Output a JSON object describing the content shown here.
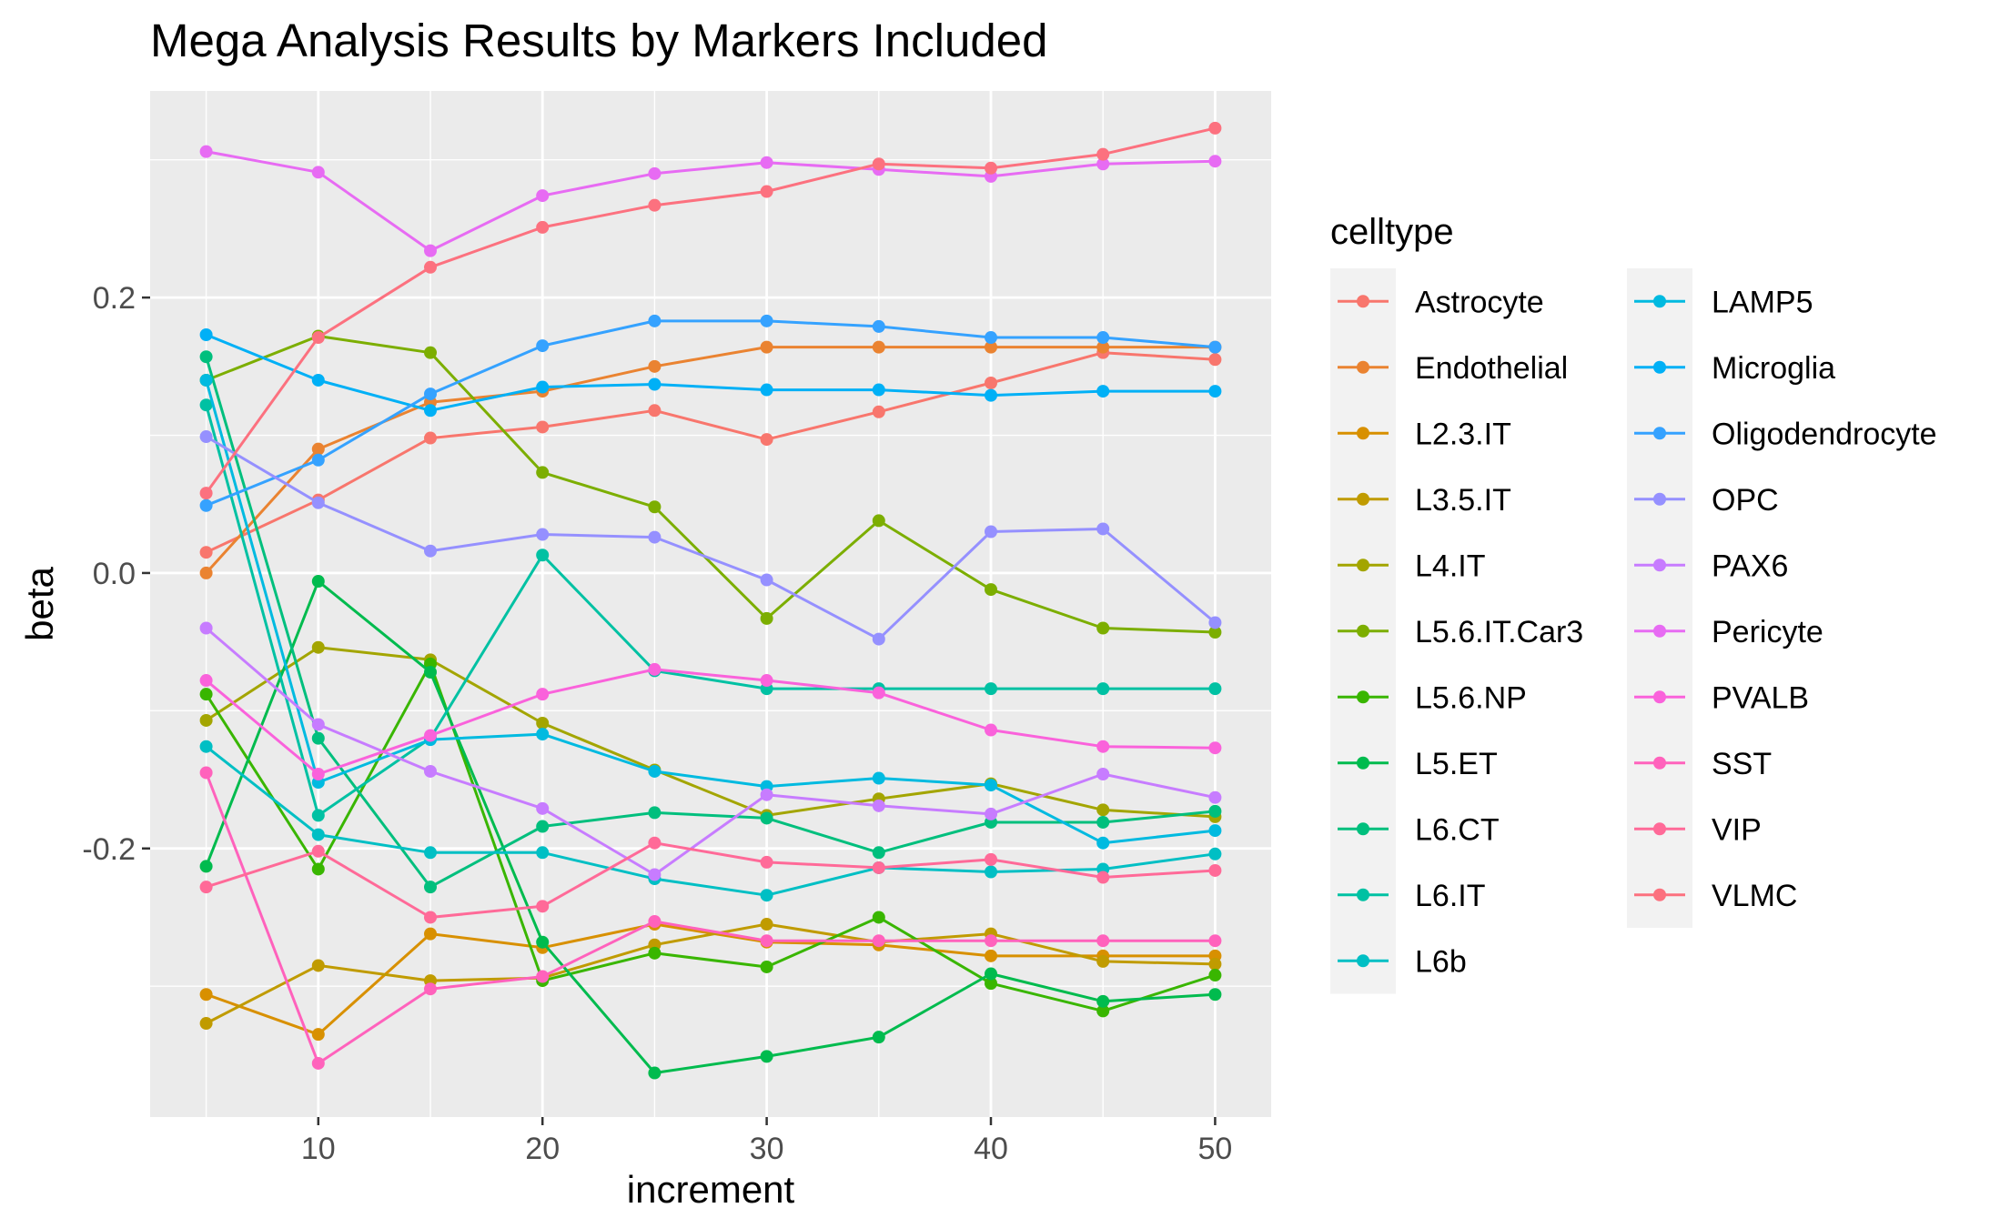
{
  "chart_data": {
    "type": "line",
    "title": "Mega Analysis Results by Markers Included",
    "xlabel": "increment",
    "ylabel": "beta",
    "xlim": [
      2.5,
      52.5
    ],
    "ylim": [
      -0.395,
      0.35
    ],
    "x_ticks": [
      10,
      20,
      30,
      40,
      50
    ],
    "x_tick_labels": [
      "10",
      "20",
      "30",
      "40",
      "50"
    ],
    "y_ticks": [
      -0.2,
      0.0,
      0.2
    ],
    "y_tick_labels": [
      "-0.2",
      "0.0",
      "0.2"
    ],
    "grid": true,
    "legend": {
      "title": "celltype",
      "placement": "right"
    },
    "x": [
      5,
      10,
      15,
      20,
      25,
      30,
      35,
      40,
      45,
      50
    ],
    "series": [
      {
        "name": "Astrocyte",
        "color": "#F8766D",
        "values": [
          0.015,
          0.053,
          0.098,
          0.106,
          0.118,
          0.097,
          0.117,
          0.138,
          0.16,
          0.155
        ]
      },
      {
        "name": "Endothelial",
        "color": "#EA8331",
        "values": [
          0.0,
          0.09,
          0.124,
          0.132,
          0.15,
          0.164,
          0.164,
          0.164,
          0.164,
          0.164
        ]
      },
      {
        "name": "L2.3.IT",
        "color": "#D89000",
        "values": [
          -0.306,
          -0.335,
          -0.262,
          -0.272,
          -0.255,
          -0.268,
          -0.27,
          -0.278,
          -0.278,
          -0.278
        ]
      },
      {
        "name": "L3.5.IT",
        "color": "#C09B00",
        "values": [
          -0.327,
          -0.285,
          -0.296,
          -0.294,
          -0.27,
          -0.255,
          -0.268,
          -0.262,
          -0.282,
          -0.284
        ]
      },
      {
        "name": "L4.IT",
        "color": "#A3A500",
        "values": [
          -0.107,
          -0.054,
          -0.063,
          -0.109,
          -0.143,
          -0.176,
          -0.164,
          -0.153,
          -0.172,
          -0.177
        ]
      },
      {
        "name": "L5.6.IT.Car3",
        "color": "#7CAE00",
        "values": [
          0.14,
          0.172,
          0.16,
          0.073,
          0.048,
          -0.033,
          0.038,
          -0.012,
          -0.04,
          -0.043
        ]
      },
      {
        "name": "L5.6.NP",
        "color": "#39B600",
        "values": [
          -0.088,
          -0.215,
          -0.066,
          -0.296,
          -0.276,
          -0.286,
          -0.25,
          -0.298,
          -0.318,
          -0.292
        ]
      },
      {
        "name": "L5.ET",
        "color": "#00BB4E",
        "values": [
          -0.213,
          -0.006,
          -0.072,
          -0.268,
          -0.363,
          -0.351,
          -0.337,
          -0.291,
          -0.311,
          -0.306
        ]
      },
      {
        "name": "L6.CT",
        "color": "#00BF7D",
        "values": [
          0.157,
          -0.12,
          -0.228,
          -0.184,
          -0.174,
          -0.178,
          -0.203,
          -0.181,
          -0.181,
          -0.173
        ]
      },
      {
        "name": "L6.IT",
        "color": "#00C1A3",
        "values": [
          0.122,
          -0.176,
          -0.12,
          0.013,
          -0.071,
          -0.084,
          -0.084,
          -0.084,
          -0.084,
          -0.084
        ]
      },
      {
        "name": "L6b",
        "color": "#00BFC4",
        "values": [
          -0.126,
          -0.19,
          -0.203,
          -0.203,
          -0.222,
          -0.234,
          -0.214,
          -0.217,
          -0.215,
          -0.204
        ]
      },
      {
        "name": "LAMP5",
        "color": "#00BAE0",
        "values": [
          0.14,
          -0.152,
          -0.121,
          -0.117,
          -0.144,
          -0.155,
          -0.149,
          -0.154,
          -0.196,
          -0.187
        ]
      },
      {
        "name": "Microglia",
        "color": "#00B0F6",
        "values": [
          0.173,
          0.14,
          0.118,
          0.135,
          0.137,
          0.133,
          0.133,
          0.129,
          0.132,
          0.132
        ]
      },
      {
        "name": "Oligodendrocyte",
        "color": "#35A2FF",
        "values": [
          0.049,
          0.082,
          0.13,
          0.165,
          0.183,
          0.183,
          0.179,
          0.171,
          0.171,
          0.164
        ]
      },
      {
        "name": "OPC",
        "color": "#9590FF",
        "values": [
          0.099,
          0.051,
          0.016,
          0.028,
          0.026,
          -0.005,
          -0.048,
          0.03,
          0.032,
          -0.036
        ]
      },
      {
        "name": "PAX6",
        "color": "#C77CFF",
        "values": [
          -0.04,
          -0.11,
          -0.144,
          -0.171,
          -0.219,
          -0.161,
          -0.169,
          -0.175,
          -0.146,
          -0.163
        ]
      },
      {
        "name": "Pericyte",
        "color": "#E76BF3",
        "values": [
          0.306,
          0.291,
          0.234,
          0.274,
          0.29,
          0.298,
          0.293,
          0.288,
          0.297,
          0.299
        ]
      },
      {
        "name": "PVALB",
        "color": "#FA62DB",
        "values": [
          -0.078,
          -0.146,
          -0.118,
          -0.088,
          -0.07,
          -0.078,
          -0.087,
          -0.114,
          -0.126,
          -0.127
        ]
      },
      {
        "name": "SST",
        "color": "#FF62BC",
        "values": [
          -0.145,
          -0.356,
          -0.302,
          -0.293,
          -0.253,
          -0.267,
          -0.267,
          -0.267,
          -0.267,
          -0.267
        ]
      },
      {
        "name": "VIP",
        "color": "#FF6A98",
        "values": [
          -0.228,
          -0.202,
          -0.25,
          -0.242,
          -0.196,
          -0.21,
          -0.214,
          -0.208,
          -0.221,
          -0.216
        ]
      },
      {
        "name": "VLMC",
        "color": "#FC717F",
        "values": [
          0.058,
          0.171,
          0.222,
          0.251,
          0.267,
          0.277,
          0.297,
          0.294,
          0.304,
          0.323
        ]
      }
    ]
  }
}
